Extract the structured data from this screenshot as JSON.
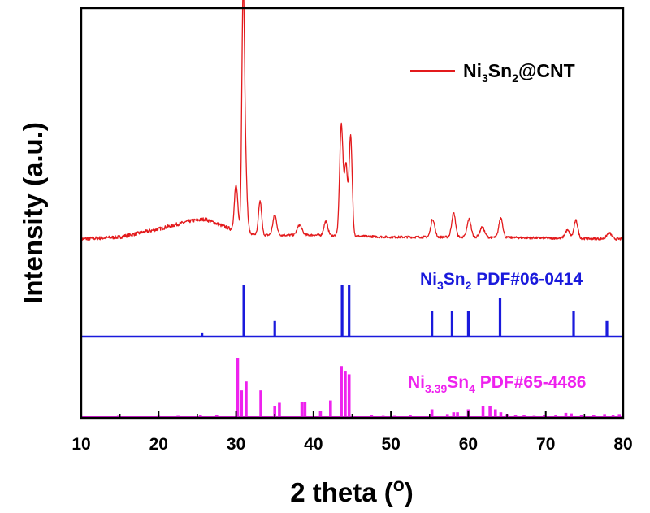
{
  "chart_data": {
    "type": "line",
    "xlabel": "2 theta (",
    "xlabel_sup": "o",
    "xlabel_close": ")",
    "ylabel": "Intensity (a.u.)",
    "xlim": [
      10,
      80
    ],
    "x_ticks": [
      "10",
      "20",
      "30",
      "40",
      "50",
      "60",
      "70",
      "80"
    ],
    "x_tick_values": [
      10,
      20,
      30,
      40,
      50,
      60,
      70,
      80
    ],
    "colors": {
      "sample": "#e31a1c",
      "ref1": "#1a1adc",
      "ref2": "#ee22ee",
      "axis": "#000000"
    },
    "legend": {
      "label_parts": [
        "Ni",
        "3",
        "Sn",
        "2",
        "@CNT"
      ],
      "placement": "top-right"
    },
    "sample_series": {
      "name": "Ni3Sn2@CNT",
      "background": [
        [
          10,
          0.0
        ],
        [
          15,
          0.01
        ],
        [
          20,
          0.05
        ],
        [
          24,
          0.09
        ],
        [
          26,
          0.1
        ],
        [
          28,
          0.07
        ],
        [
          30,
          0.04
        ],
        [
          33,
          0.02
        ],
        [
          40,
          0.02
        ],
        [
          50,
          0.01
        ],
        [
          60,
          0.01
        ],
        [
          70,
          0.005
        ],
        [
          80,
          0.0
        ]
      ],
      "peaks": [
        {
          "x": 30.0,
          "i": 0.23,
          "w": 0.22
        },
        {
          "x": 30.9,
          "i": 0.92,
          "w": 0.16
        },
        {
          "x": 31.1,
          "i": 0.45,
          "w": 0.25
        },
        {
          "x": 33.1,
          "i": 0.17,
          "w": 0.2
        },
        {
          "x": 35.0,
          "i": 0.1,
          "w": 0.25
        },
        {
          "x": 38.2,
          "i": 0.05,
          "w": 0.3
        },
        {
          "x": 41.6,
          "i": 0.07,
          "w": 0.25
        },
        {
          "x": 43.6,
          "i": 0.56,
          "w": 0.22
        },
        {
          "x": 44.2,
          "i": 0.35,
          "w": 0.2
        },
        {
          "x": 44.8,
          "i": 0.5,
          "w": 0.2
        },
        {
          "x": 55.4,
          "i": 0.09,
          "w": 0.25
        },
        {
          "x": 58.1,
          "i": 0.12,
          "w": 0.25
        },
        {
          "x": 60.1,
          "i": 0.09,
          "w": 0.25
        },
        {
          "x": 61.8,
          "i": 0.05,
          "w": 0.3
        },
        {
          "x": 64.2,
          "i": 0.1,
          "w": 0.25
        },
        {
          "x": 72.8,
          "i": 0.04,
          "w": 0.3
        },
        {
          "x": 73.9,
          "i": 0.09,
          "w": 0.25
        },
        {
          "x": 78.2,
          "i": 0.03,
          "w": 0.3
        }
      ]
    },
    "ref1": {
      "label_parts": [
        "Ni",
        "3",
        "Sn",
        "2",
        " PDF#06-0414"
      ],
      "peaks": [
        [
          25.6,
          0.08
        ],
        [
          31.0,
          1.0
        ],
        [
          35.0,
          0.3
        ],
        [
          43.7,
          1.0
        ],
        [
          44.6,
          1.0
        ],
        [
          55.3,
          0.5
        ],
        [
          57.9,
          0.5
        ],
        [
          60.0,
          0.5
        ],
        [
          64.1,
          0.75
        ],
        [
          73.6,
          0.5
        ],
        [
          77.9,
          0.3
        ]
      ]
    },
    "ref2": {
      "label_parts": [
        "Ni",
        "3.39",
        "Sn",
        "4",
        " PDF#65-4486"
      ],
      "peaks": [
        [
          14.8,
          0.02
        ],
        [
          17.5,
          0.01
        ],
        [
          20.0,
          0.02
        ],
        [
          22.5,
          0.02
        ],
        [
          25.4,
          0.03
        ],
        [
          27.5,
          0.04
        ],
        [
          30.2,
          1.0
        ],
        [
          30.7,
          0.45
        ],
        [
          31.3,
          0.6
        ],
        [
          33.2,
          0.45
        ],
        [
          35.0,
          0.18
        ],
        [
          35.6,
          0.24
        ],
        [
          38.5,
          0.25
        ],
        [
          38.9,
          0.25
        ],
        [
          40.9,
          0.1
        ],
        [
          42.2,
          0.28
        ],
        [
          43.6,
          0.86
        ],
        [
          44.1,
          0.78
        ],
        [
          44.6,
          0.72
        ],
        [
          47.5,
          0.03
        ],
        [
          49.0,
          0.02
        ],
        [
          50.5,
          0.02
        ],
        [
          52.5,
          0.03
        ],
        [
          55.3,
          0.13
        ],
        [
          57.3,
          0.05
        ],
        [
          58.1,
          0.08
        ],
        [
          58.6,
          0.08
        ],
        [
          60.0,
          0.13
        ],
        [
          61.9,
          0.18
        ],
        [
          62.8,
          0.18
        ],
        [
          63.5,
          0.13
        ],
        [
          64.2,
          0.08
        ],
        [
          65.0,
          0.05
        ],
        [
          66.1,
          0.03
        ],
        [
          67.2,
          0.03
        ],
        [
          68.5,
          0.02
        ],
        [
          69.8,
          0.03
        ],
        [
          71.3,
          0.03
        ],
        [
          72.6,
          0.07
        ],
        [
          73.3,
          0.06
        ],
        [
          74.6,
          0.04
        ],
        [
          76.2,
          0.03
        ],
        [
          77.6,
          0.05
        ],
        [
          78.7,
          0.04
        ],
        [
          79.5,
          0.05
        ]
      ]
    }
  }
}
